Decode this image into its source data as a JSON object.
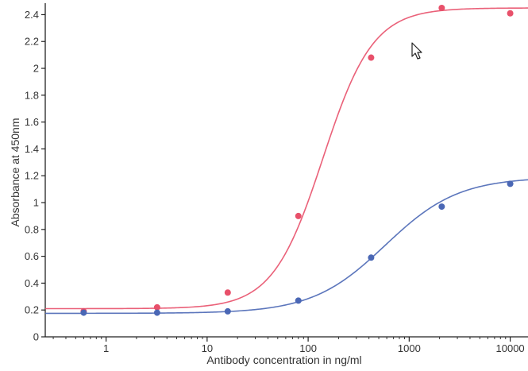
{
  "chart_data": {
    "type": "line",
    "title": "",
    "xlabel": "Antibody concentration in ng/ml",
    "ylabel": "Absorbance at 450nm",
    "x_scale": "log",
    "xlim": [
      0.25,
      15000
    ],
    "ylim": [
      0,
      2.45
    ],
    "x_ticks": [
      1,
      10,
      100,
      1000,
      10000
    ],
    "x_tick_labels": [
      "1",
      "10",
      "100",
      "1000",
      "10000"
    ],
    "y_ticks": [
      0,
      0.2,
      0.4,
      0.6,
      0.8,
      1,
      1.2,
      1.4,
      1.6,
      1.8,
      2,
      2.2,
      2.4
    ],
    "y_tick_labels": [
      "0",
      "0.2",
      "0.4",
      "0.6",
      "0.8",
      "1",
      "1.2",
      "1.4",
      "1.6",
      "1.8",
      "2",
      "2.2",
      "2.4"
    ],
    "grid": false,
    "legend": "none",
    "series": [
      {
        "color": "#e8506a",
        "points": [
          {
            "x": 0.6,
            "y": 0.19
          },
          {
            "x": 3.2,
            "y": 0.22
          },
          {
            "x": 16,
            "y": 0.33
          },
          {
            "x": 80,
            "y": 0.9
          },
          {
            "x": 420,
            "y": 2.08
          },
          {
            "x": 2100,
            "y": 2.45
          },
          {
            "x": 10000,
            "y": 2.41
          }
        ],
        "curve": {
          "bottom": 0.21,
          "top": 2.45,
          "ec50": 140,
          "hill": 1.75
        }
      },
      {
        "color": "#4a67b5",
        "points": [
          {
            "x": 0.6,
            "y": 0.18
          },
          {
            "x": 3.2,
            "y": 0.18
          },
          {
            "x": 16,
            "y": 0.19
          },
          {
            "x": 80,
            "y": 0.27
          },
          {
            "x": 420,
            "y": 0.59
          },
          {
            "x": 2100,
            "y": 0.97
          },
          {
            "x": 10000,
            "y": 1.14
          }
        ],
        "curve": {
          "bottom": 0.175,
          "top": 1.19,
          "ec50": 580,
          "hill": 1.2
        }
      }
    ]
  },
  "cursor": {
    "icon": "mouse-pointer-icon"
  }
}
